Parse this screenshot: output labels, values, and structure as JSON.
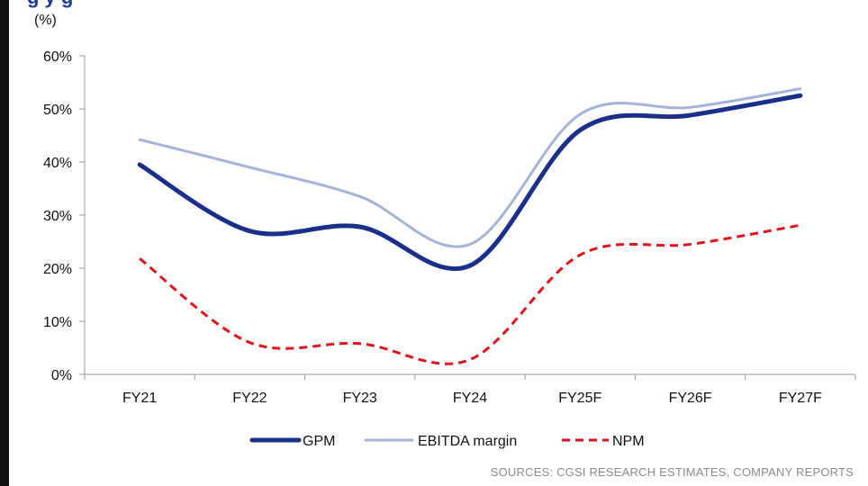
{
  "chart_data": {
    "type": "line",
    "title_fragment": "g                y    g",
    "unit_label": "(%)",
    "categories": [
      "FY21",
      "FY22",
      "FY23",
      "FY24",
      "FY25F",
      "FY26F",
      "FY27F"
    ],
    "y_ticks": [
      "0%",
      "10%",
      "20%",
      "30%",
      "40%",
      "50%",
      "60%"
    ],
    "ylim": [
      0,
      60
    ],
    "grid": false,
    "legend_position": "bottom",
    "series": [
      {
        "name": "GPM",
        "values": [
          39.5,
          27.0,
          27.8,
          20.5,
          46.0,
          48.8,
          52.5
        ],
        "color": "#1a2f8a",
        "style": "solid-thick"
      },
      {
        "name": "EBITDA margin",
        "values": [
          44.2,
          39.0,
          33.5,
          24.5,
          49.0,
          50.3,
          53.8
        ],
        "color": "#a6b3d8",
        "style": "solid-thin"
      },
      {
        "name": "NPM",
        "values": [
          21.8,
          6.0,
          5.8,
          2.8,
          22.5,
          24.5,
          28.1
        ],
        "color": "#e0121c",
        "style": "dashed"
      }
    ],
    "source": "SOURCES: CGSI RESEARCH ESTIMATES, COMPANY REPORTS"
  }
}
